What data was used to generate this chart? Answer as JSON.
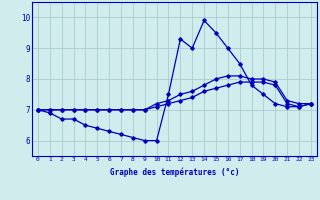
{
  "xlabel": "Graphe des températures (°c)",
  "x": [
    0,
    1,
    2,
    3,
    4,
    5,
    6,
    7,
    8,
    9,
    10,
    11,
    12,
    13,
    14,
    15,
    16,
    17,
    18,
    19,
    20,
    21,
    22,
    23
  ],
  "line1": [
    7.0,
    6.9,
    6.7,
    6.7,
    6.5,
    6.4,
    6.3,
    6.2,
    6.1,
    6.0,
    6.0,
    7.5,
    9.3,
    9.0,
    9.9,
    9.5,
    9.0,
    8.5,
    7.8,
    7.5,
    7.2,
    7.1,
    7.1,
    7.2
  ],
  "line2": [
    7.0,
    7.0,
    7.0,
    7.0,
    7.0,
    7.0,
    7.0,
    7.0,
    7.0,
    7.0,
    7.2,
    7.3,
    7.5,
    7.6,
    7.8,
    8.0,
    8.1,
    8.1,
    8.0,
    8.0,
    7.9,
    7.3,
    7.2,
    7.2
  ],
  "line3": [
    7.0,
    7.0,
    7.0,
    7.0,
    7.0,
    7.0,
    7.0,
    7.0,
    7.0,
    7.0,
    7.1,
    7.2,
    7.3,
    7.4,
    7.6,
    7.7,
    7.8,
    7.9,
    7.9,
    7.9,
    7.8,
    7.2,
    7.1,
    7.2
  ],
  "line_color": "#0000bb",
  "bg_color": "#d0ecec",
  "grid_color": "#a0c8c8",
  "ylim": [
    5.5,
    10.5
  ],
  "yticks": [
    6,
    7,
    8,
    9,
    10
  ],
  "xlim": [
    -0.5,
    23.5
  ]
}
